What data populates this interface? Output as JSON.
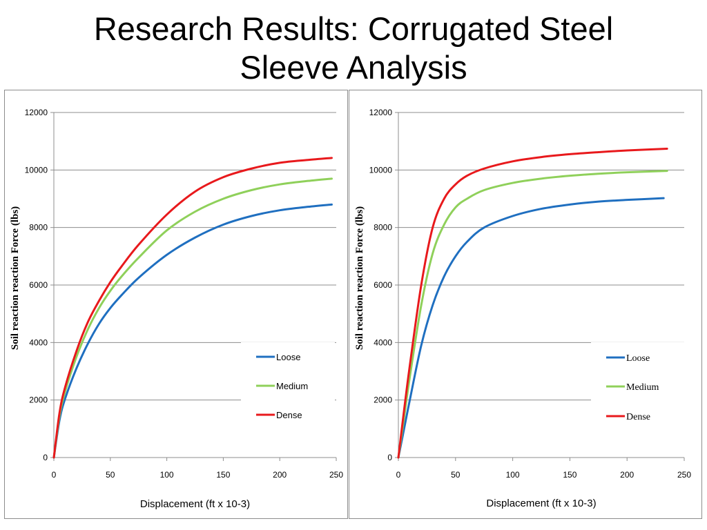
{
  "slide": {
    "title_line1": "Research Results: Corrugated Steel",
    "title_line2": "Sleeve Analysis"
  },
  "chart_data": [
    {
      "type": "line",
      "xlabel": "Displacement (ft x 10-3)",
      "ylabel": "Soil reaction reaction Force (lbs)",
      "xlim": [
        0,
        250
      ],
      "ylim": [
        0,
        12000
      ],
      "xticks": [
        0,
        50,
        100,
        150,
        200,
        250
      ],
      "yticks": [
        0,
        2000,
        4000,
        6000,
        8000,
        10000,
        12000
      ],
      "grid": "horizontal",
      "legend_position": "bottom-right",
      "series": [
        {
          "name": "Loose",
          "color": "#1f6fc0",
          "x": [
            0,
            5,
            10,
            20,
            30,
            40,
            50,
            60,
            75,
            100,
            125,
            150,
            175,
            200,
            225,
            246
          ],
          "y": [
            0,
            1300,
            2050,
            3100,
            3950,
            4650,
            5200,
            5650,
            6250,
            7050,
            7650,
            8100,
            8400,
            8600,
            8720,
            8800
          ]
        },
        {
          "name": "Medium",
          "color": "#8fd05a",
          "x": [
            0,
            5,
            10,
            20,
            30,
            40,
            50,
            60,
            75,
            100,
            125,
            150,
            175,
            200,
            225,
            246
          ],
          "y": [
            0,
            1450,
            2300,
            3500,
            4450,
            5200,
            5800,
            6300,
            6950,
            7900,
            8550,
            9000,
            9300,
            9500,
            9620,
            9700
          ]
        },
        {
          "name": "Dense",
          "color": "#e8191c",
          "x": [
            0,
            5,
            10,
            20,
            30,
            40,
            50,
            60,
            75,
            100,
            125,
            150,
            175,
            200,
            225,
            246
          ],
          "y": [
            0,
            1550,
            2450,
            3700,
            4700,
            5450,
            6100,
            6650,
            7400,
            8450,
            9250,
            9750,
            10050,
            10250,
            10350,
            10420
          ]
        }
      ]
    },
    {
      "type": "line",
      "xlabel": "Displacement (ft x 10-3)",
      "ylabel": "Soil reaction reaction Force (lbs)",
      "xlim": [
        0,
        250
      ],
      "ylim": [
        0,
        12000
      ],
      "xticks": [
        0,
        50,
        100,
        150,
        200,
        250
      ],
      "yticks": [
        0,
        2000,
        4000,
        6000,
        8000,
        10000,
        12000
      ],
      "grid": "horizontal",
      "legend_position": "bottom-right",
      "series": [
        {
          "name": "Loose",
          "color": "#1f6fc0",
          "x": [
            0,
            5,
            10,
            20,
            30,
            40,
            50,
            60,
            75,
            100,
            125,
            150,
            175,
            200,
            232
          ],
          "y": [
            0,
            1000,
            2000,
            3900,
            5300,
            6300,
            7000,
            7500,
            8000,
            8400,
            8650,
            8800,
            8900,
            8960,
            9020
          ]
        },
        {
          "name": "Medium",
          "color": "#8fd05a",
          "x": [
            0,
            5,
            10,
            20,
            30,
            40,
            50,
            60,
            75,
            100,
            125,
            150,
            175,
            200,
            235
          ],
          "y": [
            0,
            1400,
            2800,
            5300,
            7100,
            8100,
            8700,
            9000,
            9300,
            9550,
            9700,
            9800,
            9870,
            9920,
            9970
          ]
        },
        {
          "name": "Dense",
          "color": "#e8191c",
          "x": [
            0,
            5,
            10,
            20,
            30,
            40,
            50,
            60,
            75,
            100,
            125,
            150,
            175,
            200,
            235
          ],
          "y": [
            0,
            1650,
            3200,
            6000,
            8000,
            9000,
            9500,
            9800,
            10050,
            10300,
            10450,
            10550,
            10620,
            10680,
            10740
          ]
        }
      ]
    }
  ]
}
